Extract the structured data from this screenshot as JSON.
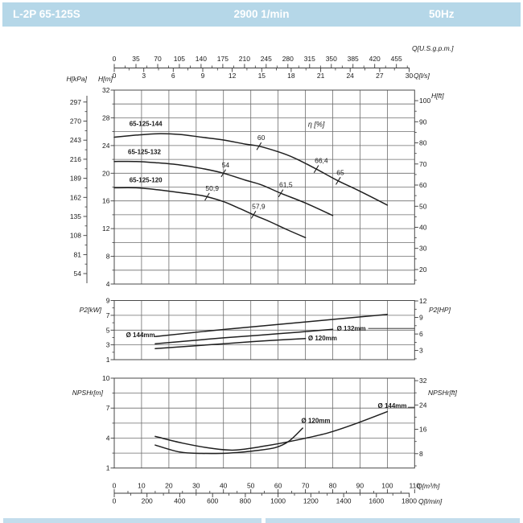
{
  "header": {
    "model": "L-2P 65-125S",
    "speed": "2900 1/min",
    "frequency": "50Hz"
  },
  "colors": {
    "header_bg": "#b5d7e8",
    "header_text": "#ffffff",
    "grid": "#6e6e6e",
    "curve": "#1f1f1f",
    "footer_bar": "#c3ddec",
    "text": "#1a1a1a"
  },
  "chart_data": {
    "type": "line",
    "x_axis": {
      "unit": "Q[m³/h]",
      "min": 0,
      "max": 110,
      "grid_step": 10,
      "ticks": [
        0,
        10,
        20,
        30,
        40,
        50,
        60,
        70,
        80,
        90,
        100,
        110
      ]
    },
    "x_axis_lmin": {
      "unit": "Q[l/min]",
      "ticks": [
        0,
        200,
        400,
        600,
        800,
        1000,
        1200,
        1400,
        1600,
        1800
      ]
    },
    "x_axis_gpm": {
      "unit": "Q[U.S.g.p.m.]",
      "ticks": [
        0,
        35,
        70,
        105,
        140,
        175,
        210,
        245,
        280,
        315,
        350,
        385,
        420,
        455
      ]
    },
    "x_axis_lps": {
      "unit": "Q[l/s]",
      "ticks": [
        0,
        3,
        6,
        9,
        12,
        15,
        18,
        21,
        24,
        27,
        30
      ]
    },
    "charts": [
      {
        "id": "head",
        "y_axis": {
          "unit": "H[m]",
          "min": 4,
          "max": 32,
          "grid_step": 2,
          "tick_labels": [
            32,
            28,
            24,
            20,
            16,
            12,
            8,
            4
          ]
        },
        "y_axis_kpa": {
          "unit": "H[kPa]",
          "ticks": [
            297,
            270,
            243,
            216,
            189,
            162,
            135,
            108,
            81,
            54
          ]
        },
        "y_axis_ft": {
          "unit": "H[ft]",
          "ticks": [
            100,
            90,
            80,
            70,
            60,
            50,
            40,
            30,
            20
          ]
        },
        "eta_label": "η [%]",
        "eta_label_at": [
          71,
          26.7
        ],
        "series": [
          {
            "name": "65-125-144",
            "label_at": [
              5.5,
              26.85
            ],
            "points": [
              [
                0,
                25.2
              ],
              [
                8,
                25.5
              ],
              [
                16,
                25.7
              ],
              [
                24,
                25.6
              ],
              [
                32,
                25.2
              ],
              [
                40,
                24.8
              ],
              [
                48,
                24.2
              ],
              [
                53,
                23.9
              ],
              [
                60,
                23.1
              ],
              [
                66,
                22.2
              ],
              [
                74,
                20.6
              ],
              [
                82,
                18.9
              ],
              [
                90,
                17.4
              ],
              [
                100,
                15.4
              ]
            ]
          },
          {
            "name": "65-125-132",
            "label_at": [
              5.0,
              22.75
            ],
            "points": [
              [
                0,
                21.7
              ],
              [
                8,
                21.7
              ],
              [
                16,
                21.5
              ],
              [
                24,
                21.2
              ],
              [
                32,
                20.7
              ],
              [
                40,
                20.0
              ],
              [
                48,
                19.0
              ],
              [
                54,
                18.3
              ],
              [
                61,
                17.1
              ],
              [
                70,
                15.7
              ],
              [
                80,
                13.9
              ]
            ]
          },
          {
            "name": "65-125-120",
            "label_at": [
              5.5,
              18.7
            ],
            "points": [
              [
                0,
                17.9
              ],
              [
                8,
                17.9
              ],
              [
                16,
                17.6
              ],
              [
                24,
                17.2
              ],
              [
                30,
                16.9
              ],
              [
                34,
                16.6
              ],
              [
                40,
                15.9
              ],
              [
                46,
                14.9
              ],
              [
                51,
                14.0
              ],
              [
                57,
                13.0
              ],
              [
                63,
                11.9
              ],
              [
                70,
                10.7
              ]
            ]
          }
        ],
        "efficiency_marks": [
          {
            "series": 0,
            "q": 53,
            "label": "60"
          },
          {
            "series": 0,
            "q": 74,
            "label": "66,4"
          },
          {
            "series": 0,
            "q": 82,
            "label": "65"
          },
          {
            "series": 1,
            "q": 40,
            "label": "54"
          },
          {
            "series": 1,
            "q": 61,
            "label": "61,5"
          },
          {
            "series": 2,
            "q": 34,
            "label": "50,9"
          },
          {
            "series": 2,
            "q": 51,
            "label": "57,9"
          }
        ]
      },
      {
        "id": "power",
        "y_axis": {
          "unit": "P2[kW]",
          "min": 1,
          "max": 9,
          "grid_step": 2,
          "tick_labels": [
            9,
            7,
            5,
            3,
            1
          ]
        },
        "y_axis_hp": {
          "unit": "P2[HP]",
          "ticks": [
            12,
            9,
            6,
            3
          ]
        },
        "series": [
          {
            "name": "Ø 144mm",
            "label_at": [
              4.3,
              4.05
            ],
            "points": [
              [
                15,
                4.13
              ],
              [
                40,
                5.08
              ],
              [
                70,
                6.1
              ],
              [
                100,
                7.13
              ]
            ]
          },
          {
            "name": "Ø 132mm",
            "label_at": [
              81.5,
              4.92
            ],
            "leader": [
              [
                93,
                5.22
              ],
              [
                110,
                5.22
              ]
            ],
            "points": [
              [
                15,
                3.15
              ],
              [
                40,
                3.95
              ],
              [
                60,
                4.5
              ],
              [
                80,
                5.1
              ]
            ]
          },
          {
            "name": "Ø 120mm",
            "label_at": [
              71,
              3.62
            ],
            "points": [
              [
                15,
                2.5
              ],
              [
                40,
                3.15
              ],
              [
                55,
                3.55
              ],
              [
                70,
                3.86
              ]
            ]
          }
        ]
      },
      {
        "id": "npsh",
        "y_axis": {
          "unit": "NPSHr[m]",
          "min": 1,
          "max": 10,
          "grid_step": 1.5,
          "tick_labels": [
            10,
            7,
            4,
            1
          ]
        },
        "y_axis_ft": {
          "unit": "NPSHr[ft]",
          "ticks": [
            32,
            24,
            16,
            8
          ]
        },
        "series": [
          {
            "name": "Ø 144mm",
            "label_at": [
              96.5,
              7.0
            ],
            "leader": [
              [
                107.5,
                7.08
              ],
              [
                110,
                7.08
              ]
            ],
            "points": [
              [
                15,
                4.17
              ],
              [
                25,
                3.5
              ],
              [
                35,
                3.0
              ],
              [
                44,
                2.8
              ],
              [
                55,
                3.2
              ],
              [
                65,
                3.7
              ],
              [
                78,
                4.5
              ],
              [
                88,
                5.4
              ],
              [
                100,
                6.65
              ]
            ]
          },
          {
            "name": "Ø 120mm",
            "label_at": [
              68.5,
              5.52
            ],
            "points": [
              [
                15,
                3.3
              ],
              [
                24,
                2.6
              ],
              [
                32,
                2.47
              ],
              [
                42,
                2.5
              ],
              [
                52,
                2.75
              ],
              [
                59,
                3.05
              ],
              [
                64,
                3.7
              ],
              [
                69,
                5.0
              ]
            ]
          }
        ]
      }
    ]
  }
}
